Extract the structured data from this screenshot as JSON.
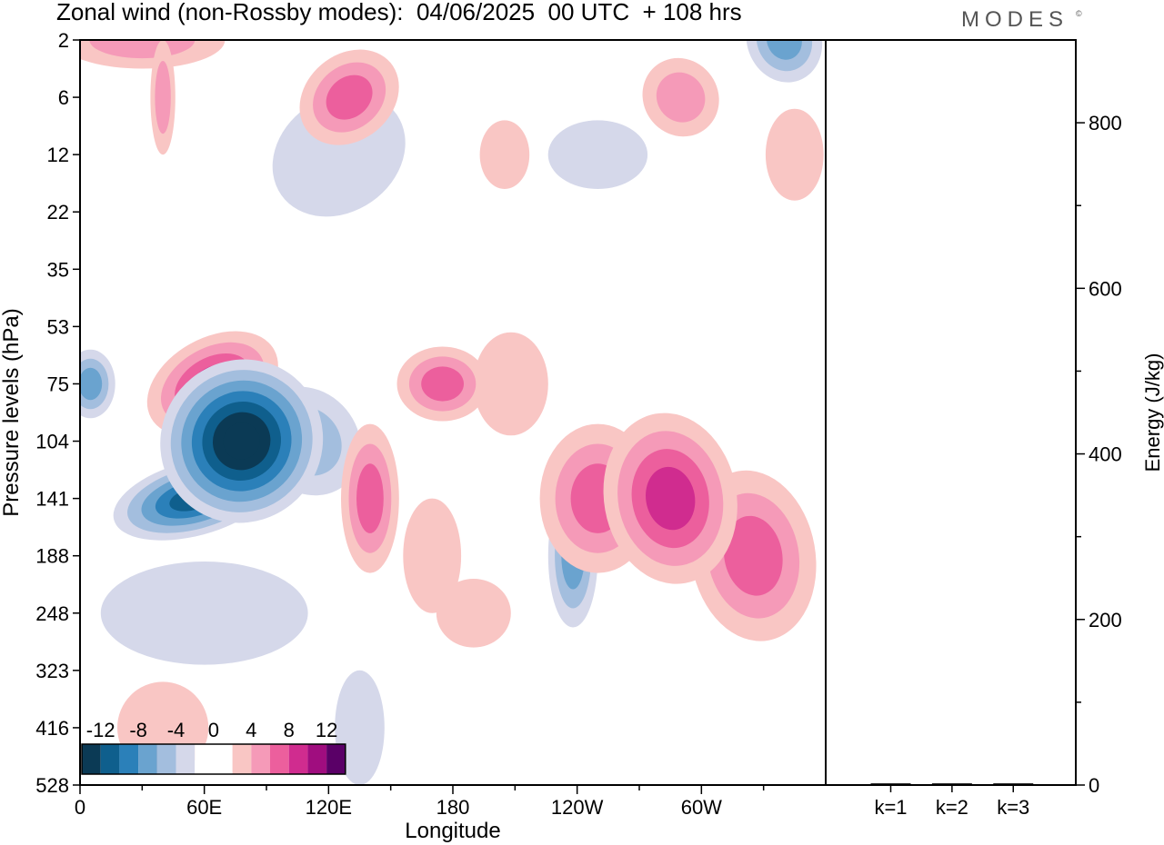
{
  "header": {
    "title": "Zonal wind (non-Rossby modes):  04/06/2025  00 UTC  + 108 hrs",
    "brand": "MODES",
    "brand_mark": "©"
  },
  "chart_data": [
    {
      "type": "heatmap",
      "xlabel": "Longitude",
      "ylabel": "Pressure levels (hPa)",
      "x_ticks": [
        "0",
        "60E",
        "120E",
        "180",
        "120W",
        "60W"
      ],
      "x_tick_degrees": [
        0,
        60,
        120,
        180,
        240,
        300
      ],
      "xlim": [
        0,
        360
      ],
      "y_ticks": [
        "2",
        "6",
        "12",
        "22",
        "35",
        "53",
        "75",
        "104",
        "141",
        "188",
        "248",
        "323",
        "416",
        "528"
      ],
      "colorbar": {
        "tick_labels": [
          "-12",
          "-8",
          "-4",
          "0",
          "4",
          "8",
          "12"
        ],
        "bins": [
          -14,
          -12,
          -10,
          -8,
          -6,
          -4,
          -2,
          0,
          2,
          4,
          6,
          8,
          10,
          12,
          14
        ],
        "colors": [
          "#0b3a55",
          "#0f5f8d",
          "#2b80b9",
          "#6aa3cf",
          "#a3bede",
          "#d5d8ea",
          "#ffffff",
          "#ffffff",
          "#f9c6c4",
          "#f59ab8",
          "#ec5f9d",
          "#d02c8f",
          "#a00d7f",
          "#5a0067"
        ]
      },
      "features": [
        {
          "lon": 64,
          "level": "75",
          "value": 8,
          "x_extent_deg": 34,
          "y_extent_levels": 1.6,
          "angle_deg": -29
        },
        {
          "lon": 78,
          "level": "104",
          "value": -14,
          "x_extent_deg": 40,
          "y_extent_levels": 2.8,
          "angle_deg": -50
        },
        {
          "lon": 55,
          "level": "141",
          "value": -11,
          "x_extent_deg": 40,
          "y_extent_levels": 1.3,
          "angle_deg": -15
        },
        {
          "lon": 5,
          "level": "75",
          "value": -6,
          "x_extent_deg": 12,
          "y_extent_levels": 1.2,
          "angle_deg": 0
        },
        {
          "lon": 110,
          "level": "104",
          "value": -5,
          "x_extent_deg": 24,
          "y_extent_levels": 2.0,
          "angle_deg": -40
        },
        {
          "lon": 60,
          "level": "248",
          "value": -2,
          "x_extent_deg": 50,
          "y_extent_levels": 1.8,
          "angle_deg": 0
        },
        {
          "lon": 140,
          "level": "141",
          "value": 7,
          "x_extent_deg": 14,
          "y_extent_levels": 2.6,
          "angle_deg": 0
        },
        {
          "lon": 170,
          "level": "188",
          "value": 3,
          "x_extent_deg": 14,
          "y_extent_levels": 2.0,
          "angle_deg": 0
        },
        {
          "lon": 175,
          "level": "75",
          "value": 6,
          "x_extent_deg": 22,
          "y_extent_levels": 1.3,
          "angle_deg": 0
        },
        {
          "lon": 208,
          "level": "75",
          "value": 3,
          "x_extent_deg": 18,
          "y_extent_levels": 1.8,
          "angle_deg": 0
        },
        {
          "lon": 250,
          "level": "141",
          "value": 7,
          "x_extent_deg": 28,
          "y_extent_levels": 2.6,
          "angle_deg": 0
        },
        {
          "lon": 285,
          "level": "141",
          "value": 9,
          "x_extent_deg": 32,
          "y_extent_levels": 3.0,
          "angle_deg": -10
        },
        {
          "lon": 325,
          "level": "188",
          "value": 6,
          "x_extent_deg": 30,
          "y_extent_levels": 3.0,
          "angle_deg": -10
        },
        {
          "lon": 238,
          "level": "188",
          "value": -6,
          "x_extent_deg": 12,
          "y_extent_levels": 2.5,
          "angle_deg": 0
        },
        {
          "lon": 290,
          "level": "6",
          "value": 5,
          "x_extent_deg": 18,
          "y_extent_levels": 1.4,
          "angle_deg": -35
        },
        {
          "lon": 340,
          "level": "2",
          "value": -6,
          "x_extent_deg": 18,
          "y_extent_levels": 1.5,
          "angle_deg": -20
        },
        {
          "lon": 130,
          "level": "6",
          "value": 6,
          "x_extent_deg": 26,
          "y_extent_levels": 1.5,
          "angle_deg": -40
        },
        {
          "lon": 30,
          "level": "2",
          "value": 4,
          "x_extent_deg": 40,
          "y_extent_levels": 1.0,
          "angle_deg": 0
        },
        {
          "lon": 125,
          "level": "12",
          "value": -3,
          "x_extent_deg": 34,
          "y_extent_levels": 2.0,
          "angle_deg": -35
        },
        {
          "lon": 205,
          "level": "12",
          "value": 3,
          "x_extent_deg": 12,
          "y_extent_levels": 1.2,
          "angle_deg": 0
        },
        {
          "lon": 250,
          "level": "12",
          "value": -3,
          "x_extent_deg": 24,
          "y_extent_levels": 1.2,
          "angle_deg": 0
        },
        {
          "lon": 345,
          "level": "12",
          "value": 3,
          "x_extent_deg": 14,
          "y_extent_levels": 1.6,
          "angle_deg": 0
        },
        {
          "lon": 40,
          "level": "6",
          "value": 4,
          "x_extent_deg": 6,
          "y_extent_levels": 2.0,
          "angle_deg": 0
        },
        {
          "lon": 190,
          "level": "248",
          "value": 3,
          "x_extent_deg": 18,
          "y_extent_levels": 1.2,
          "angle_deg": 0
        },
        {
          "lon": 40,
          "level": "416",
          "value": 3,
          "x_extent_deg": 22,
          "y_extent_levels": 1.6,
          "angle_deg": 0
        },
        {
          "lon": 135,
          "level": "416",
          "value": -2,
          "x_extent_deg": 12,
          "y_extent_levels": 2.0,
          "angle_deg": 0
        }
      ]
    },
    {
      "type": "bar",
      "categories": [
        "k=1",
        "k=2",
        "k=3"
      ],
      "values": [
        2,
        2,
        2
      ],
      "ylabel": "Energy (J/kg)",
      "ylim": [
        0,
        900
      ],
      "y_major_ticks": [
        0,
        200,
        400,
        600,
        800
      ],
      "y_minor_step": 100
    }
  ]
}
